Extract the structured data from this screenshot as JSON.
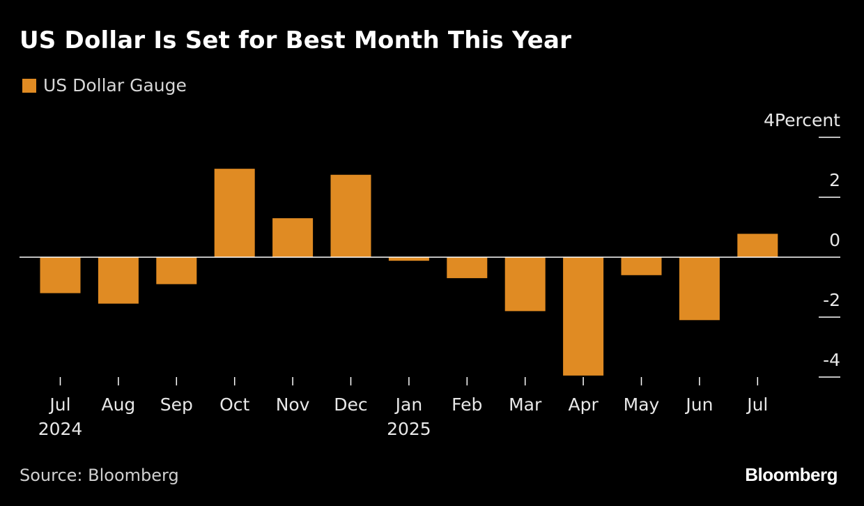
{
  "title": "US Dollar Is Set for Best Month This Year",
  "legend": {
    "label": "US Dollar Gauge",
    "color": "#E08B23"
  },
  "source": "Source: Bloomberg",
  "brand": "Bloomberg",
  "colors": {
    "background": "#000000",
    "bar": "#E08B23",
    "axis": "#FFFFFF",
    "text": "#FFFFFF"
  },
  "chart_data": {
    "type": "bar",
    "title": "US Dollar Is Set for Best Month This Year",
    "categories": [
      "Jul",
      "Aug",
      "Sep",
      "Oct",
      "Nov",
      "Dec",
      "Jan",
      "Feb",
      "Mar",
      "Apr",
      "May",
      "Jun",
      "Jul"
    ],
    "year_labels": {
      "0": "2024",
      "6": "2025"
    },
    "series": [
      {
        "name": "US Dollar Gauge",
        "values": [
          -1.2,
          -1.55,
          -0.9,
          2.95,
          1.3,
          2.75,
          -0.12,
          -0.7,
          -1.8,
          -3.95,
          -0.6,
          -2.1,
          0.78
        ]
      }
    ],
    "ylim": [
      -4,
      4
    ],
    "yticks": [
      4,
      2,
      0,
      -2,
      -4
    ],
    "ytick_labels": [
      "4Percent",
      "2",
      "0",
      "-2",
      "-4"
    ],
    "y_axis_position": "right",
    "legend_position": "top-left",
    "grid": false
  }
}
